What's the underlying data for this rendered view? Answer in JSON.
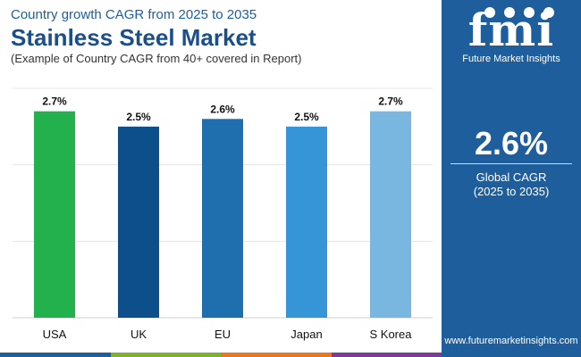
{
  "header": {
    "supertitle": "Country growth CAGR from 2025 to 2035",
    "title": "Stainless Steel Market",
    "subtitle": "(Example of Country CAGR from 40+ covered in Report)"
  },
  "chart_data": {
    "type": "bar",
    "categories": [
      "USA",
      "UK",
      "EU",
      "Japan",
      "S Korea"
    ],
    "values": [
      2.7,
      2.5,
      2.6,
      2.5,
      2.7
    ],
    "value_labels": [
      "2.7%",
      "2.5%",
      "2.6%",
      "2.5%",
      "2.7%"
    ],
    "bar_colors": [
      "#22b14c",
      "#0d4f8b",
      "#1f6fae",
      "#3595d6",
      "#7ab7e0"
    ],
    "ylim": [
      0,
      3
    ],
    "grid": true,
    "xlabel": "",
    "ylabel": ""
  },
  "side_panel": {
    "logo_text": "fmi",
    "brand_name": "Future Market Insights",
    "value": "2.6%",
    "label": "Global CAGR",
    "period": "(2025 to 2035)",
    "website": "www.futuremarketinsights.com"
  },
  "colors": {
    "panel": "#1e5e9c",
    "title": "#1b4f8c",
    "strip": [
      "#1e5e9c",
      "#7bb32e",
      "#e87722",
      "#7d3c98"
    ]
  }
}
